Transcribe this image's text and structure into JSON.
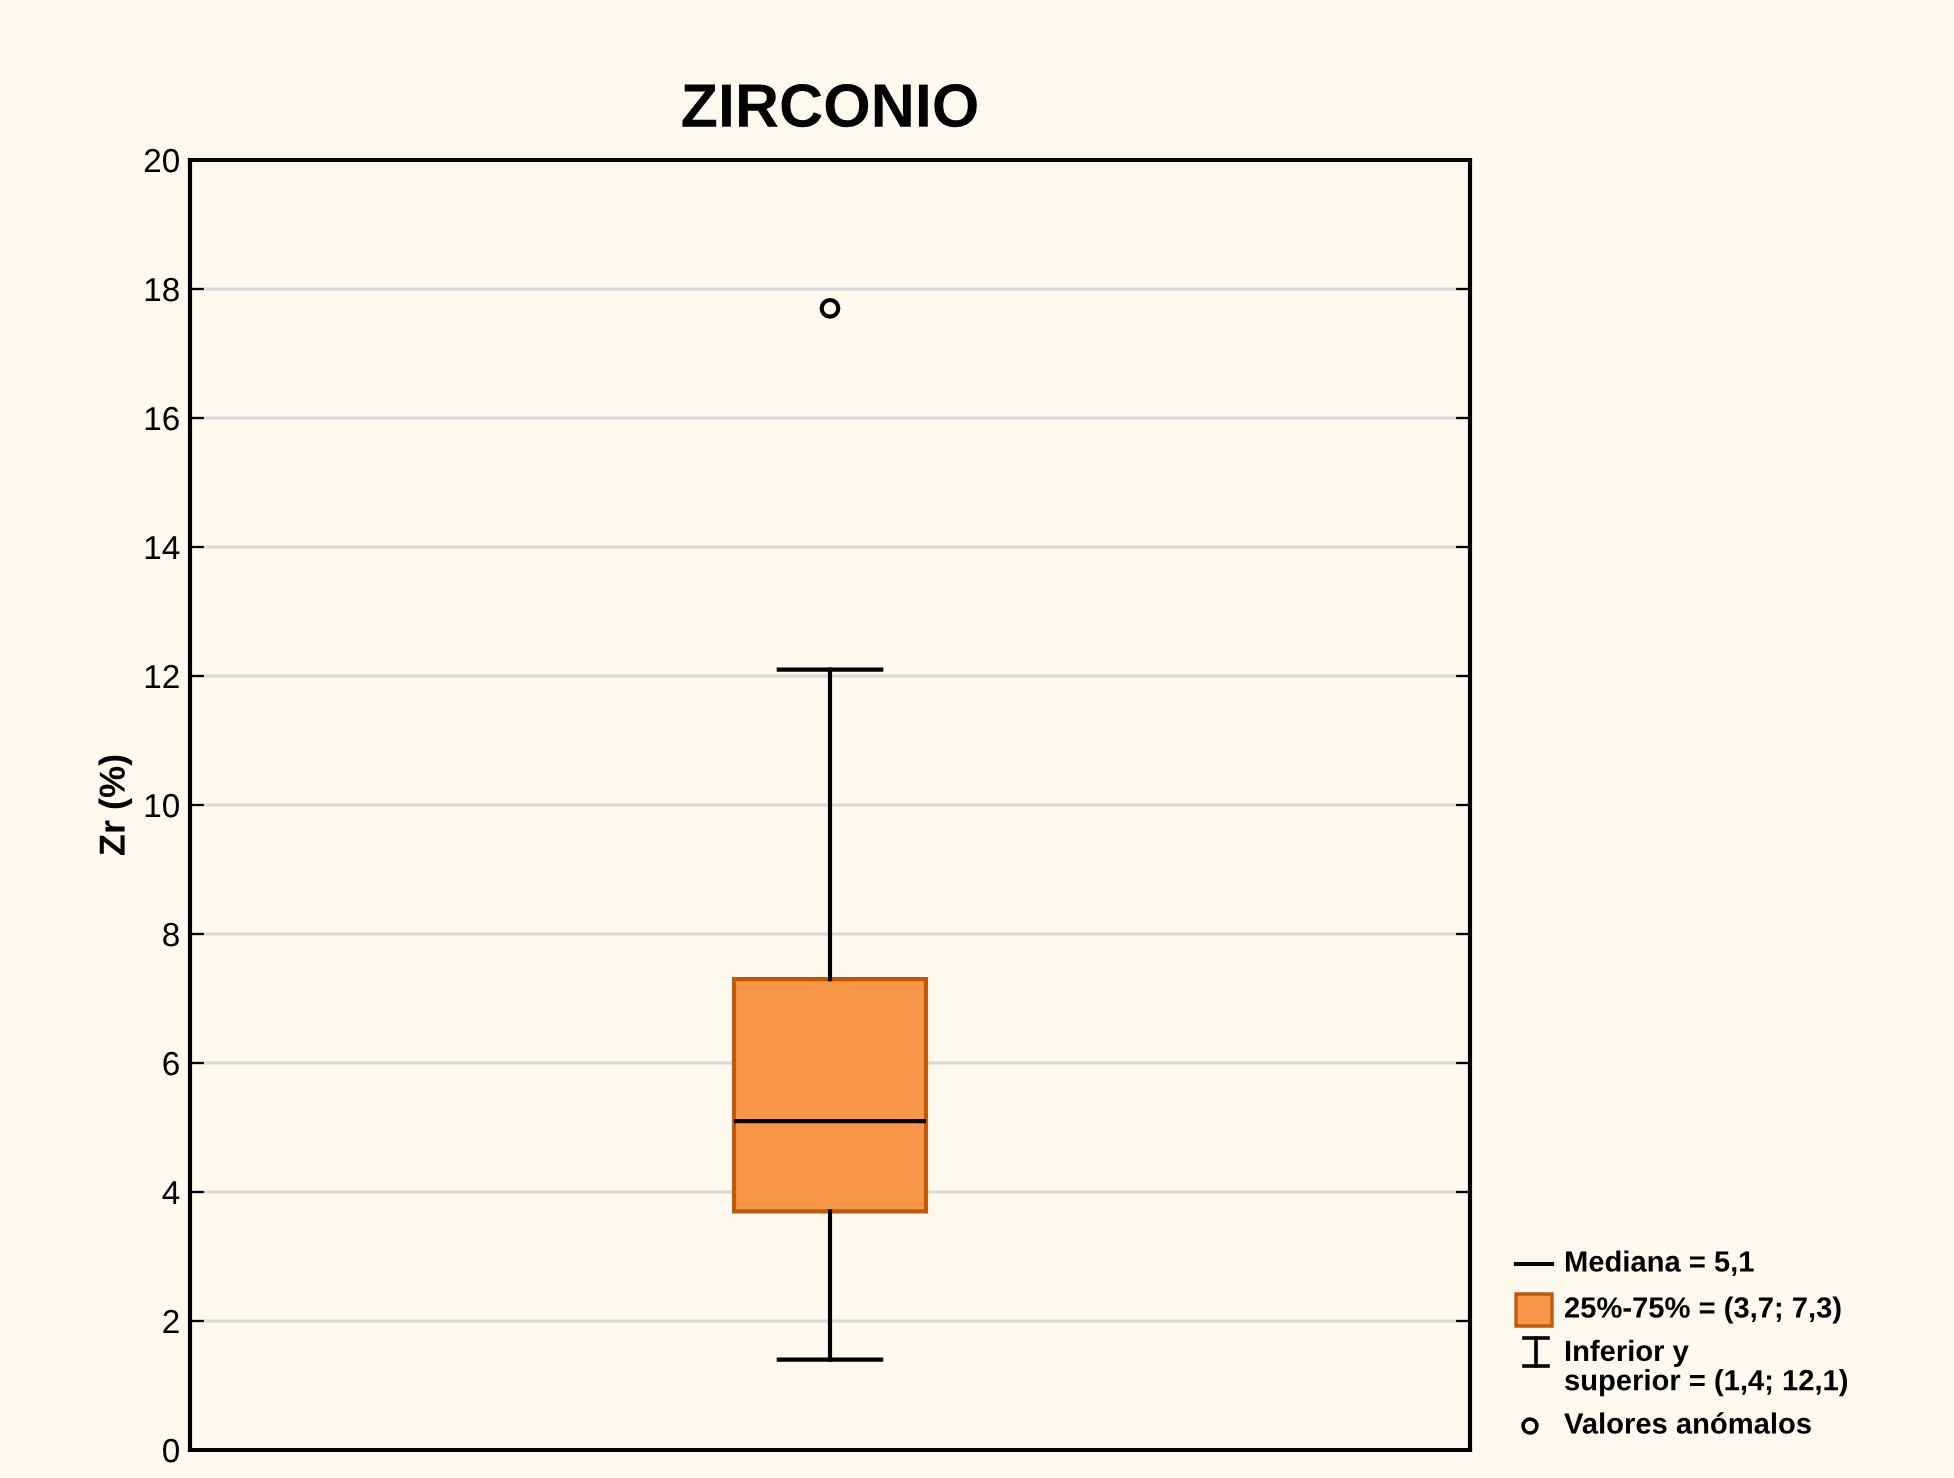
{
  "chart_data": {
    "type": "box",
    "title": "ZIRCONIO",
    "ylabel": "Zr (%)",
    "categories": [
      null
    ],
    "boxes": [
      {
        "low": 1.4,
        "q1": 3.7,
        "median": 5.1,
        "q3": 7.3,
        "high": 12.1,
        "outliers": [
          17.7
        ]
      }
    ],
    "color": "#f79646",
    "ylim": [
      0,
      20
    ],
    "yticks": [
      0,
      2,
      4,
      6,
      8,
      10,
      12,
      14,
      16,
      18,
      20
    ],
    "grid": "y",
    "annotations": [
      "Mediana = 5,1",
      "25%-75% = (3,7; 7,3)",
      "Inferior y\nsuperior = (1,4; 12,1)",
      "Valores anómalos"
    ]
  }
}
